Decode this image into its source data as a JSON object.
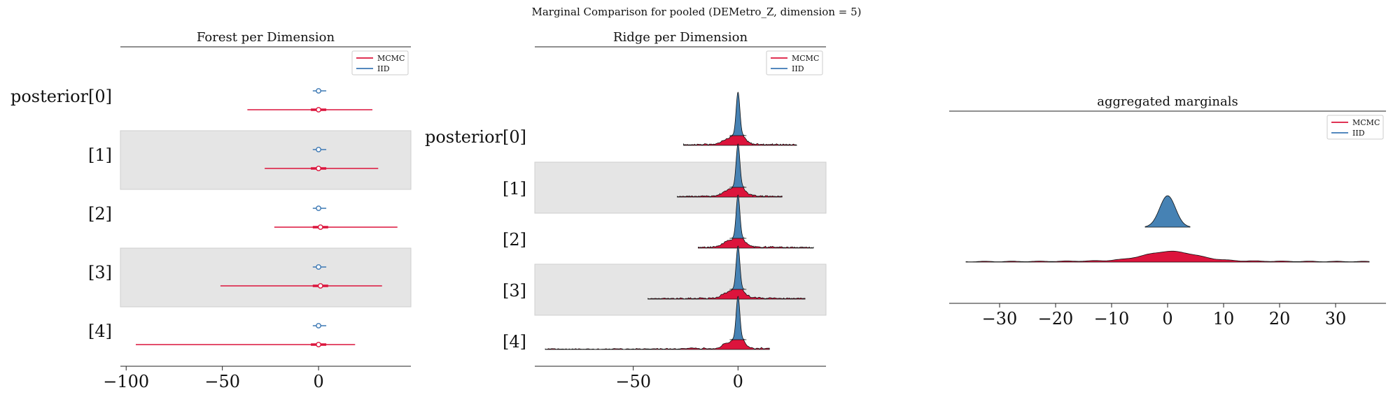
{
  "figure_title": "Marginal Comparison for pooled (DEMetro_Z, dimension = 5)",
  "colors": {
    "mcmc": "#dc143c",
    "iid": "#3c78b4",
    "band": "#e5e5e5",
    "iid_fill": "#4682b4"
  },
  "chart_data": [
    {
      "type": "forest",
      "title": "Forest per Dimension",
      "row_labels": [
        "posterior[0]",
        "[1]",
        "[2]",
        "[3]",
        "[4]"
      ],
      "x_ticks": [
        -100,
        -50,
        0
      ],
      "xlim": [
        -103,
        48
      ],
      "legend": [
        "MCMC",
        "IID"
      ],
      "legend_position": "upper-right",
      "series": [
        {
          "name": "MCMC",
          "hdi_low": [
            -37,
            -28,
            -23,
            -51,
            -95
          ],
          "hdi_high": [
            28,
            31,
            41,
            33,
            19
          ],
          "mean": [
            0,
            0,
            1,
            1,
            0
          ]
        },
        {
          "name": "IID",
          "hdi_low": [
            -3,
            -3,
            -3,
            -3,
            -3
          ],
          "hdi_high": [
            4,
            4,
            4,
            4,
            4
          ],
          "mean": [
            0,
            0,
            0,
            0,
            0
          ]
        }
      ]
    },
    {
      "type": "ridge",
      "title": "Ridge per Dimension",
      "row_labels": [
        "posterior[0]",
        "[1]",
        "[2]",
        "[3]",
        "[4]"
      ],
      "x_ticks": [
        -50,
        0
      ],
      "xlim": [
        -97,
        42
      ],
      "legend": [
        "MCMC",
        "IID"
      ],
      "legend_position": "upper-right",
      "mcmc_range": [
        [
          -26,
          28
        ],
        [
          -29,
          21
        ],
        [
          -19,
          36
        ],
        [
          -43,
          32
        ],
        [
          -92,
          15
        ]
      ],
      "iid_range": [
        [
          -4,
          4
        ],
        [
          -4,
          4
        ],
        [
          -4,
          4
        ],
        [
          -4,
          4
        ],
        [
          -4,
          4
        ]
      ]
    },
    {
      "type": "area",
      "title": "aggregated marginals",
      "x_ticks": [
        -30,
        -20,
        -10,
        0,
        10,
        20,
        30
      ],
      "xlim": [
        -39,
        39
      ],
      "legend": [
        "MCMC",
        "IID"
      ],
      "legend_position": "upper-right",
      "mcmc_range": [
        -36,
        36
      ],
      "iid_range": [
        -4,
        4
      ]
    }
  ]
}
